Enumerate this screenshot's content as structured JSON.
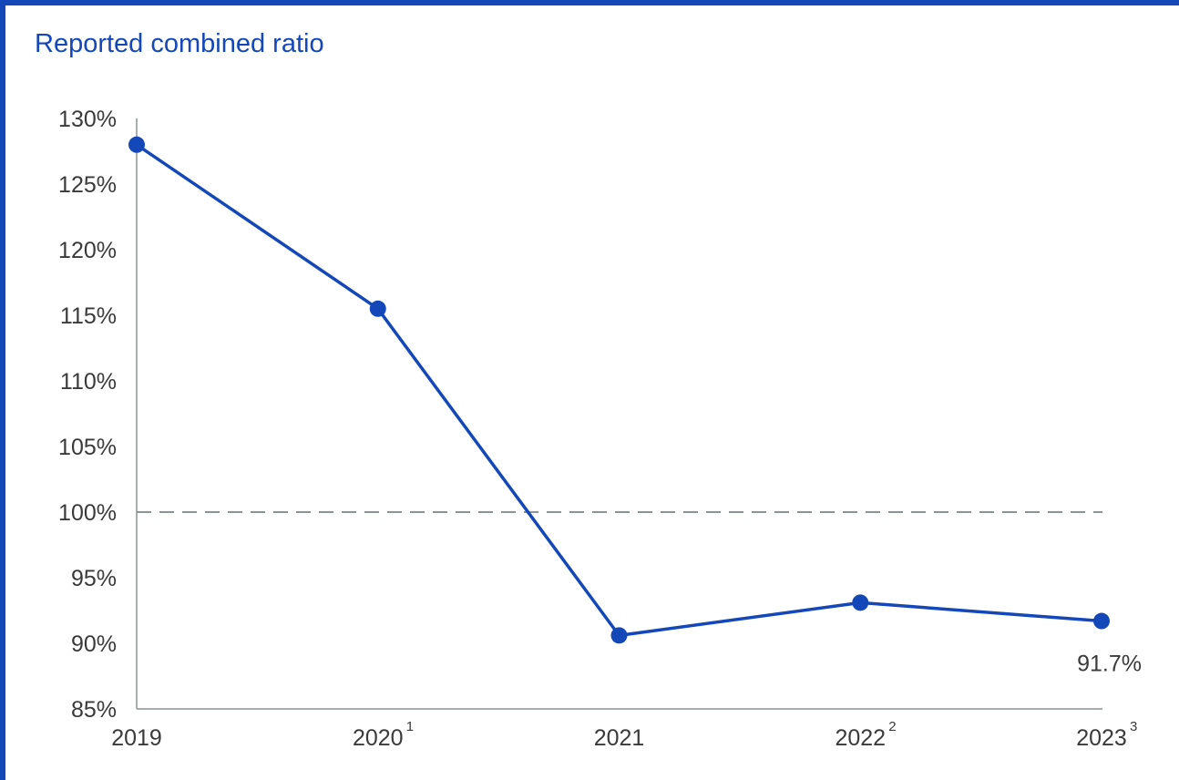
{
  "chart_data": {
    "type": "line",
    "title": "Reported combined ratio",
    "xlabel": "",
    "ylabel": "",
    "categories": [
      "2019",
      "2020",
      "2021",
      "2022",
      "2023"
    ],
    "category_superscripts": [
      "",
      "1",
      "",
      "2",
      "3"
    ],
    "values": [
      128.0,
      115.5,
      90.6,
      93.1,
      91.7
    ],
    "ylim": [
      85,
      130
    ],
    "yticks": [
      85,
      90,
      95,
      100,
      105,
      110,
      115,
      120,
      125,
      130
    ],
    "ytick_labels": [
      "85%",
      "90%",
      "95%",
      "100%",
      "105%",
      "110%",
      "115%",
      "120%",
      "125%",
      "130%"
    ],
    "reference_line": 100,
    "data_labels": [
      {
        "index": 4,
        "text": "91.7%"
      }
    ],
    "grid": false,
    "legend": "none",
    "colors": {
      "line": "#1447b8",
      "marker": "#1447b8",
      "reference": "#8a9494",
      "axis": "#8a9494",
      "title": "#1447b8",
      "border": "#1447b8"
    }
  }
}
